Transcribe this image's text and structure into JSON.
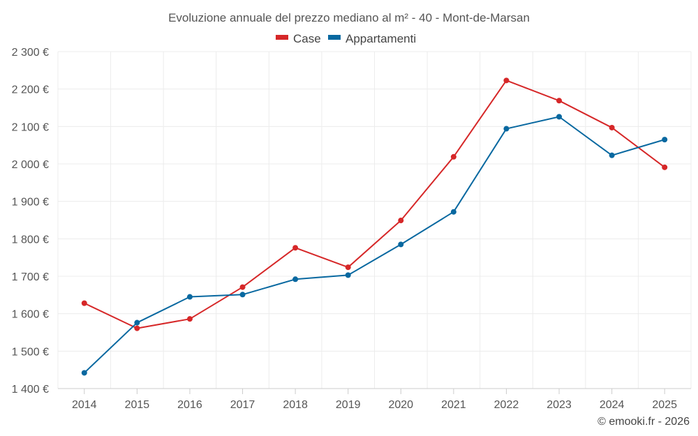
{
  "chart_data": {
    "type": "line",
    "title": "Evoluzione annuale del prezzo mediano al m² - 40 - Mont-de-Marsan",
    "xlabel": "",
    "ylabel": "",
    "ylim": [
      1400,
      2300
    ],
    "y_ticks": [
      1400,
      1500,
      1600,
      1700,
      1800,
      1900,
      2000,
      2100,
      2200,
      2300
    ],
    "y_tick_labels": [
      "1 400 €",
      "1 500 €",
      "1 600 €",
      "1 700 €",
      "1 800 €",
      "1 900 €",
      "2 000 €",
      "2 100 €",
      "2 200 €",
      "2 300 €"
    ],
    "categories": [
      "2014",
      "2015",
      "2016",
      "2017",
      "2018",
      "2019",
      "2020",
      "2021",
      "2022",
      "2023",
      "2024",
      "2025"
    ],
    "series": [
      {
        "name": "Case",
        "color": "#d62728",
        "values": [
          1628,
          1561,
          1586,
          1671,
          1776,
          1724,
          1849,
          2019,
          2223,
          2169,
          2097,
          1991
        ]
      },
      {
        "name": "Appartamenti",
        "color": "#0868a0",
        "values": [
          1442,
          1576,
          1645,
          1651,
          1692,
          1703,
          1785,
          1872,
          2094,
          2126,
          2023,
          2065
        ]
      }
    ],
    "legend_position": "top-center",
    "grid": true
  },
  "credit": "© emooki.fr - 2026"
}
